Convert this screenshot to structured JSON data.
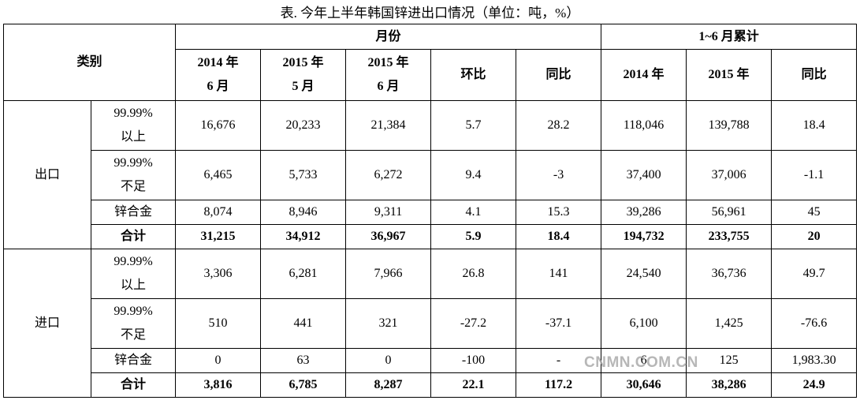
{
  "title": "表. 今年上半年韩国锌进出口情况（单位：吨，%）",
  "header": {
    "category": "类别",
    "group1": "月份",
    "group2": "1~6 月累计",
    "columns": [
      [
        "2014 年",
        "6 月"
      ],
      [
        "2015 年",
        "5 月"
      ],
      [
        "2015 年",
        "6 月"
      ],
      [
        "环比"
      ],
      [
        "同比"
      ],
      [
        "2014 年"
      ],
      [
        "2015 年"
      ],
      [
        "同比"
      ]
    ]
  },
  "sections": [
    {
      "name": "出口",
      "rows": [
        {
          "label": [
            "99.99%",
            "以上"
          ],
          "cells": [
            "16,676",
            "20,233",
            "21,384",
            "5.7",
            "28.2",
            "118,046",
            "139,788",
            "18.4"
          ]
        },
        {
          "label": [
            "99.99%",
            "不足"
          ],
          "cells": [
            "6,465",
            "5,733",
            "6,272",
            "9.4",
            "-3",
            "37,400",
            "37,006",
            "-1.1"
          ]
        },
        {
          "label": [
            "锌合金"
          ],
          "cells": [
            "8,074",
            "8,946",
            "9,311",
            "4.1",
            "15.3",
            "39,286",
            "56,961",
            "45"
          ]
        },
        {
          "label": [
            "合计"
          ],
          "cells": [
            "31,215",
            "34,912",
            "36,967",
            "5.9",
            "18.4",
            "194,732",
            "233,755",
            "20"
          ]
        }
      ]
    },
    {
      "name": "进口",
      "rows": [
        {
          "label": [
            "99.99%",
            "以上"
          ],
          "cells": [
            "3,306",
            "6,281",
            "7,966",
            "26.8",
            "141",
            "24,540",
            "36,736",
            "49.7"
          ]
        },
        {
          "label": [
            "99.99%",
            "不足"
          ],
          "cells": [
            "510",
            "441",
            "321",
            "-27.2",
            "-37.1",
            "6,100",
            "1,425",
            "-76.6"
          ]
        },
        {
          "label": [
            "锌合金"
          ],
          "cells": [
            "0",
            "63",
            "0",
            "-100",
            "-",
            "6",
            "125",
            "1,983.30"
          ]
        },
        {
          "label": [
            "合计"
          ],
          "cells": [
            "3,816",
            "6,785",
            "8,287",
            "22.1",
            "117.2",
            "30,646",
            "38,286",
            "24.9"
          ]
        }
      ]
    }
  ],
  "watermark": "CNMN.COM.CN"
}
